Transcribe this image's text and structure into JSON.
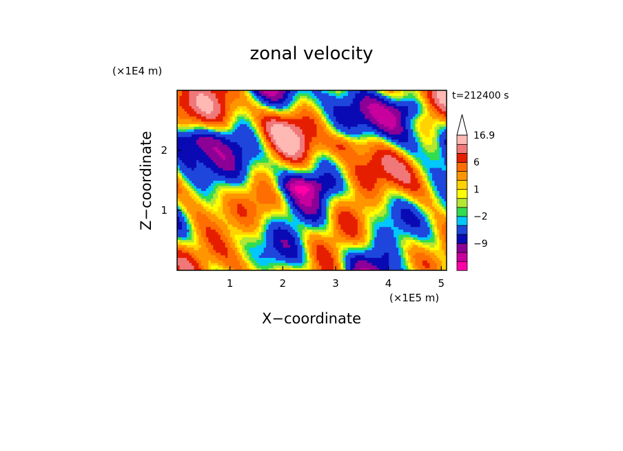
{
  "chart_data": {
    "type": "heatmap",
    "title": "zonal velocity",
    "xlabel": "X−coordinate",
    "ylabel": "Z−coordinate",
    "x_unit": "(×1E5 m)",
    "y_unit": "(×1E4 m)",
    "time_label": "t=212400 s",
    "xlim": [
      0,
      5.1
    ],
    "ylim": [
      0,
      3.0
    ],
    "x_ticks": [
      {
        "value": 1,
        "label": "1"
      },
      {
        "value": 2,
        "label": "2"
      },
      {
        "value": 3,
        "label": "3"
      },
      {
        "value": 4,
        "label": "4"
      },
      {
        "value": 5,
        "label": "5"
      }
    ],
    "y_ticks": [
      {
        "value": 1,
        "label": "1"
      },
      {
        "value": 2,
        "label": "2"
      }
    ],
    "colorbar": {
      "levels": [
        -15,
        -12,
        -9,
        -6,
        -3,
        -2,
        -1,
        0,
        1,
        2,
        4,
        6,
        9,
        12,
        16.9
      ],
      "colors": [
        "#ff00a8",
        "#c8009e",
        "#8c0096",
        "#0a0ab4",
        "#1e46dc",
        "#00c8ff",
        "#32dc50",
        "#b4e632",
        "#ffff00",
        "#ffd200",
        "#ff9600",
        "#ff6e00",
        "#e61e00",
        "#f07878",
        "#ffb9b4"
      ],
      "labels": [
        {
          "value": 16.9,
          "label": "16.9"
        },
        {
          "value": 6,
          "label": "6"
        },
        {
          "value": 1,
          "label": "1"
        },
        {
          "value": -2,
          "label": "−2"
        },
        {
          "value": -9,
          "label": "−9"
        }
      ],
      "extend": "max"
    },
    "grid": false,
    "legend": "colorbar-right"
  }
}
